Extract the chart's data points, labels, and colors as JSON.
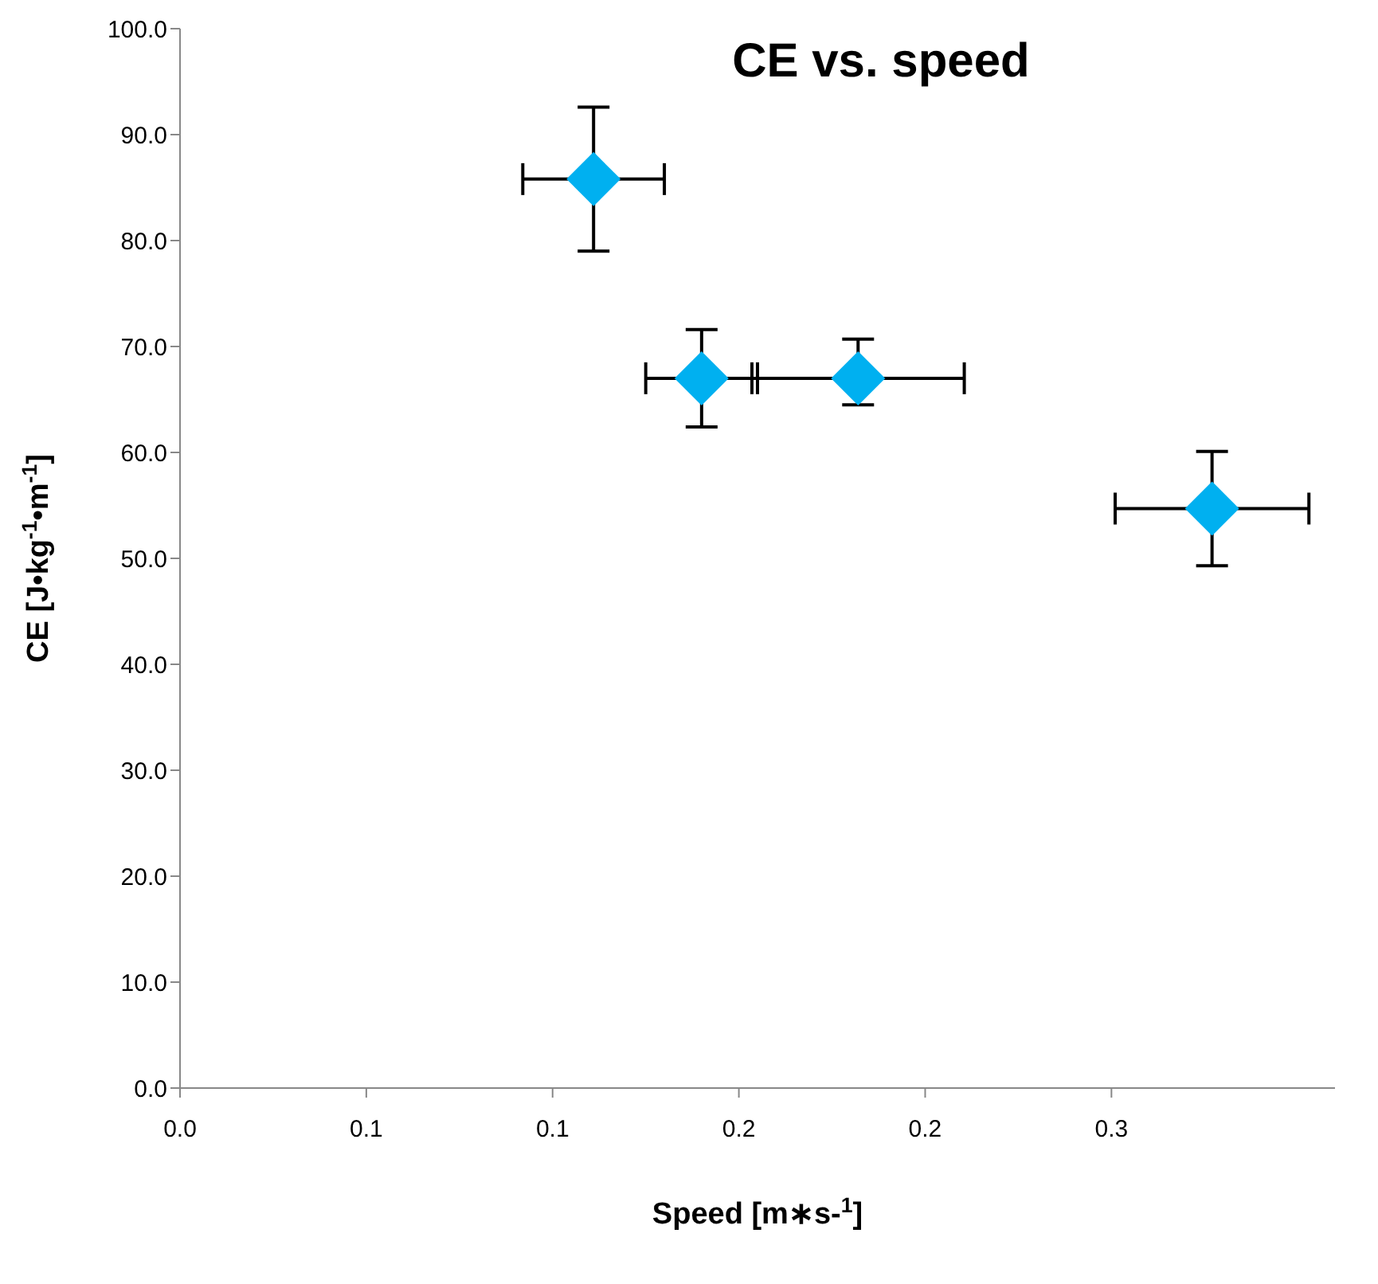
{
  "chart_data": {
    "type": "scatter",
    "title": "CE vs. speed",
    "xlabel": "Speed [m∗s-$^{1}$]",
    "ylabel": "CE [J•kg$^{-1}$•m$^{-1}$]",
    "x": [
      0.111,
      0.14,
      0.182,
      0.277
    ],
    "values": [
      85.8,
      67.0,
      67.0,
      54.7
    ],
    "errors": [
      6.8,
      4.6,
      [
        64.5,
        70.7
      ],
      5.4
    ],
    "xerrors": [
      0.019,
      0.015,
      0.0285,
      0.026
    ],
    "color": "#00b0f0",
    "marker": "diamond",
    "grid": false,
    "legend": false,
    "xlim": [
      0,
      0.31
    ],
    "xticks": [
      {
        "value": 0,
        "label": "0.0"
      },
      {
        "value": 0.05,
        "label": "0.1"
      },
      {
        "value": 0.1,
        "label": "0.1"
      },
      {
        "value": 0.15,
        "label": "0.2"
      },
      {
        "value": 0.2,
        "label": "0.2"
      },
      {
        "value": 0.25,
        "label": "0.3"
      }
    ],
    "ylim": [
      0,
      100
    ],
    "yticks": [
      {
        "value": 0,
        "label": "0.0"
      },
      {
        "value": 10,
        "label": "10.0"
      },
      {
        "value": 20,
        "label": "20.0"
      },
      {
        "value": 30,
        "label": "30.0"
      },
      {
        "value": 40,
        "label": "40.0"
      },
      {
        "value": 50,
        "label": "50.0"
      },
      {
        "value": 60,
        "label": "60.0"
      },
      {
        "value": 70,
        "label": "70.0"
      },
      {
        "value": 80,
        "label": "80.0"
      },
      {
        "value": 90,
        "label": "90.0"
      },
      {
        "value": 100,
        "label": "100.0"
      }
    ]
  }
}
